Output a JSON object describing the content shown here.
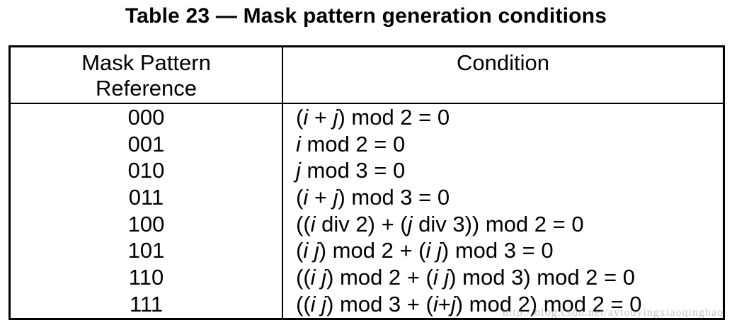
{
  "title": "Table 23 — Mask pattern generation conditions",
  "table": {
    "headers": {
      "reference_line1": "Mask Pattern",
      "reference_line2": "Reference",
      "condition": "Condition"
    },
    "rows": [
      {
        "reference": "000",
        "condition": "(i + j) mod 2 = 0"
      },
      {
        "reference": "001",
        "condition": "i mod 2 = 0"
      },
      {
        "reference": "010",
        "condition": "j mod 3 = 0"
      },
      {
        "reference": "011",
        "condition": "(i + j) mod 3 = 0"
      },
      {
        "reference": "100",
        "condition": "((i div 2) + (j div 3)) mod 2 = 0"
      },
      {
        "reference": "101",
        "condition": "(i j) mod 2 + (i j) mod 3 = 0"
      },
      {
        "reference": "110",
        "condition": "((i j) mod 2 + (i j) mod 3) mod 2 = 0"
      },
      {
        "reference": "111",
        "condition": "((i j) mod 3 + (i+j) mod 2) mod 2 = 0"
      }
    ]
  },
  "watermark": "http://blog.csdn.net/aytouyingxiaoqinghao"
}
